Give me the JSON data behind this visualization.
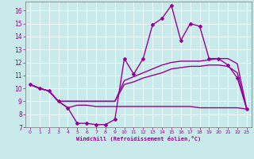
{
  "background_color": "#c8eaea",
  "line_color": "#990099",
  "xlabel": "Windchill (Refroidissement éolien,°C)",
  "xlim": [
    -0.5,
    23.5
  ],
  "ylim": [
    7,
    16.7
  ],
  "yticks": [
    7,
    8,
    9,
    10,
    11,
    12,
    13,
    14,
    15,
    16
  ],
  "xticks": [
    0,
    1,
    2,
    3,
    4,
    5,
    6,
    7,
    8,
    9,
    10,
    11,
    12,
    13,
    14,
    15,
    16,
    17,
    18,
    19,
    20,
    21,
    22,
    23
  ],
  "series": [
    {
      "x": [
        0,
        1,
        2,
        3,
        4,
        5,
        6,
        7,
        8,
        9,
        10,
        11,
        12,
        13,
        14,
        15,
        16,
        17,
        18,
        19,
        20,
        21,
        22,
        23
      ],
      "y": [
        10.3,
        10.0,
        9.8,
        9.0,
        8.5,
        7.3,
        7.3,
        7.2,
        7.2,
        7.6,
        12.3,
        11.1,
        12.3,
        14.9,
        15.4,
        16.4,
        13.7,
        15.0,
        14.8,
        12.3,
        12.3,
        11.8,
        10.8,
        8.4
      ],
      "marker": "D",
      "markersize": 2.0,
      "linewidth": 1.0
    },
    {
      "x": [
        0,
        1,
        2,
        3,
        9,
        10,
        11,
        12,
        13,
        14,
        15,
        16,
        17,
        18,
        19,
        20,
        21,
        22,
        23
      ],
      "y": [
        10.3,
        10.0,
        9.8,
        9.0,
        9.0,
        10.6,
        10.9,
        11.2,
        11.5,
        11.8,
        12.0,
        12.1,
        12.1,
        12.1,
        12.2,
        12.3,
        12.3,
        11.9,
        8.4
      ],
      "marker": null,
      "linewidth": 1.0
    },
    {
      "x": [
        0,
        1,
        2,
        3,
        9,
        10,
        11,
        12,
        13,
        14,
        15,
        16,
        17,
        18,
        19,
        20,
        21,
        22,
        23
      ],
      "y": [
        10.3,
        10.0,
        9.8,
        9.0,
        9.0,
        10.3,
        10.5,
        10.8,
        11.0,
        11.2,
        11.5,
        11.6,
        11.7,
        11.7,
        11.8,
        11.8,
        11.7,
        11.2,
        8.4
      ],
      "marker": null,
      "linewidth": 1.0
    },
    {
      "x": [
        0,
        1,
        2,
        3,
        4,
        5,
        6,
        7,
        8,
        9,
        10,
        11,
        12,
        13,
        14,
        15,
        16,
        17,
        18,
        19,
        20,
        21,
        22,
        23
      ],
      "y": [
        10.3,
        10.0,
        9.8,
        9.0,
        8.5,
        8.7,
        8.7,
        8.6,
        8.6,
        8.6,
        8.6,
        8.6,
        8.6,
        8.6,
        8.6,
        8.6,
        8.6,
        8.6,
        8.5,
        8.5,
        8.5,
        8.5,
        8.5,
        8.4
      ],
      "marker": null,
      "linewidth": 1.0
    }
  ]
}
